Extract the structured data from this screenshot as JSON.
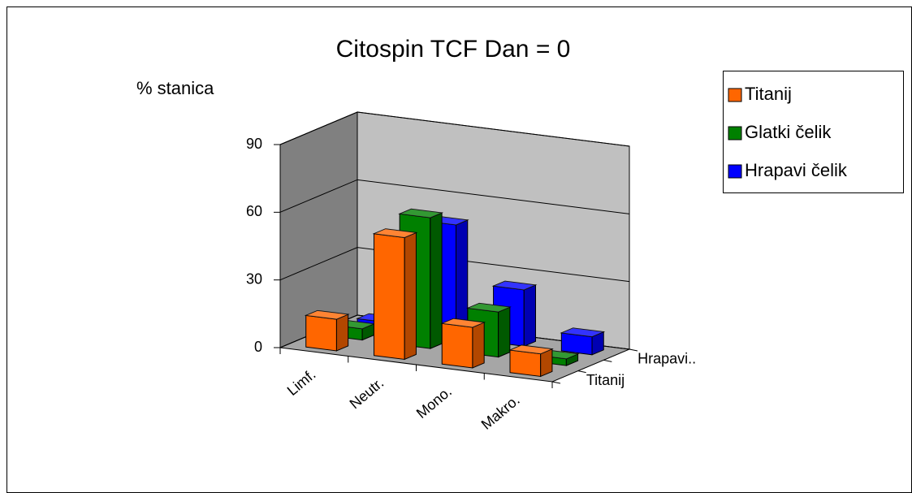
{
  "chart_data": {
    "type": "bar3d",
    "title": "Citospin  TCF Dan = 0",
    "ylabel": "% stanica",
    "categories": [
      "Limf.",
      "Neutr.",
      "Mono.",
      "Makro."
    ],
    "depth_labels": [
      "Titanij",
      "Hrapavi.."
    ],
    "series": [
      {
        "name": "Titanij",
        "color": "#ff6600",
        "values": [
          14,
          54,
          18,
          10
        ]
      },
      {
        "name": "Glatki čelik",
        "color": "#008000",
        "values": [
          5,
          58,
          20,
          3
        ]
      },
      {
        "name": "Hrapavi čelik",
        "color": "#0000ff",
        "values": [
          3,
          50,
          25,
          8
        ]
      }
    ],
    "ylim": [
      0,
      90
    ],
    "yticks": [
      0,
      30,
      60,
      90
    ],
    "grid": true,
    "legend": "right"
  }
}
